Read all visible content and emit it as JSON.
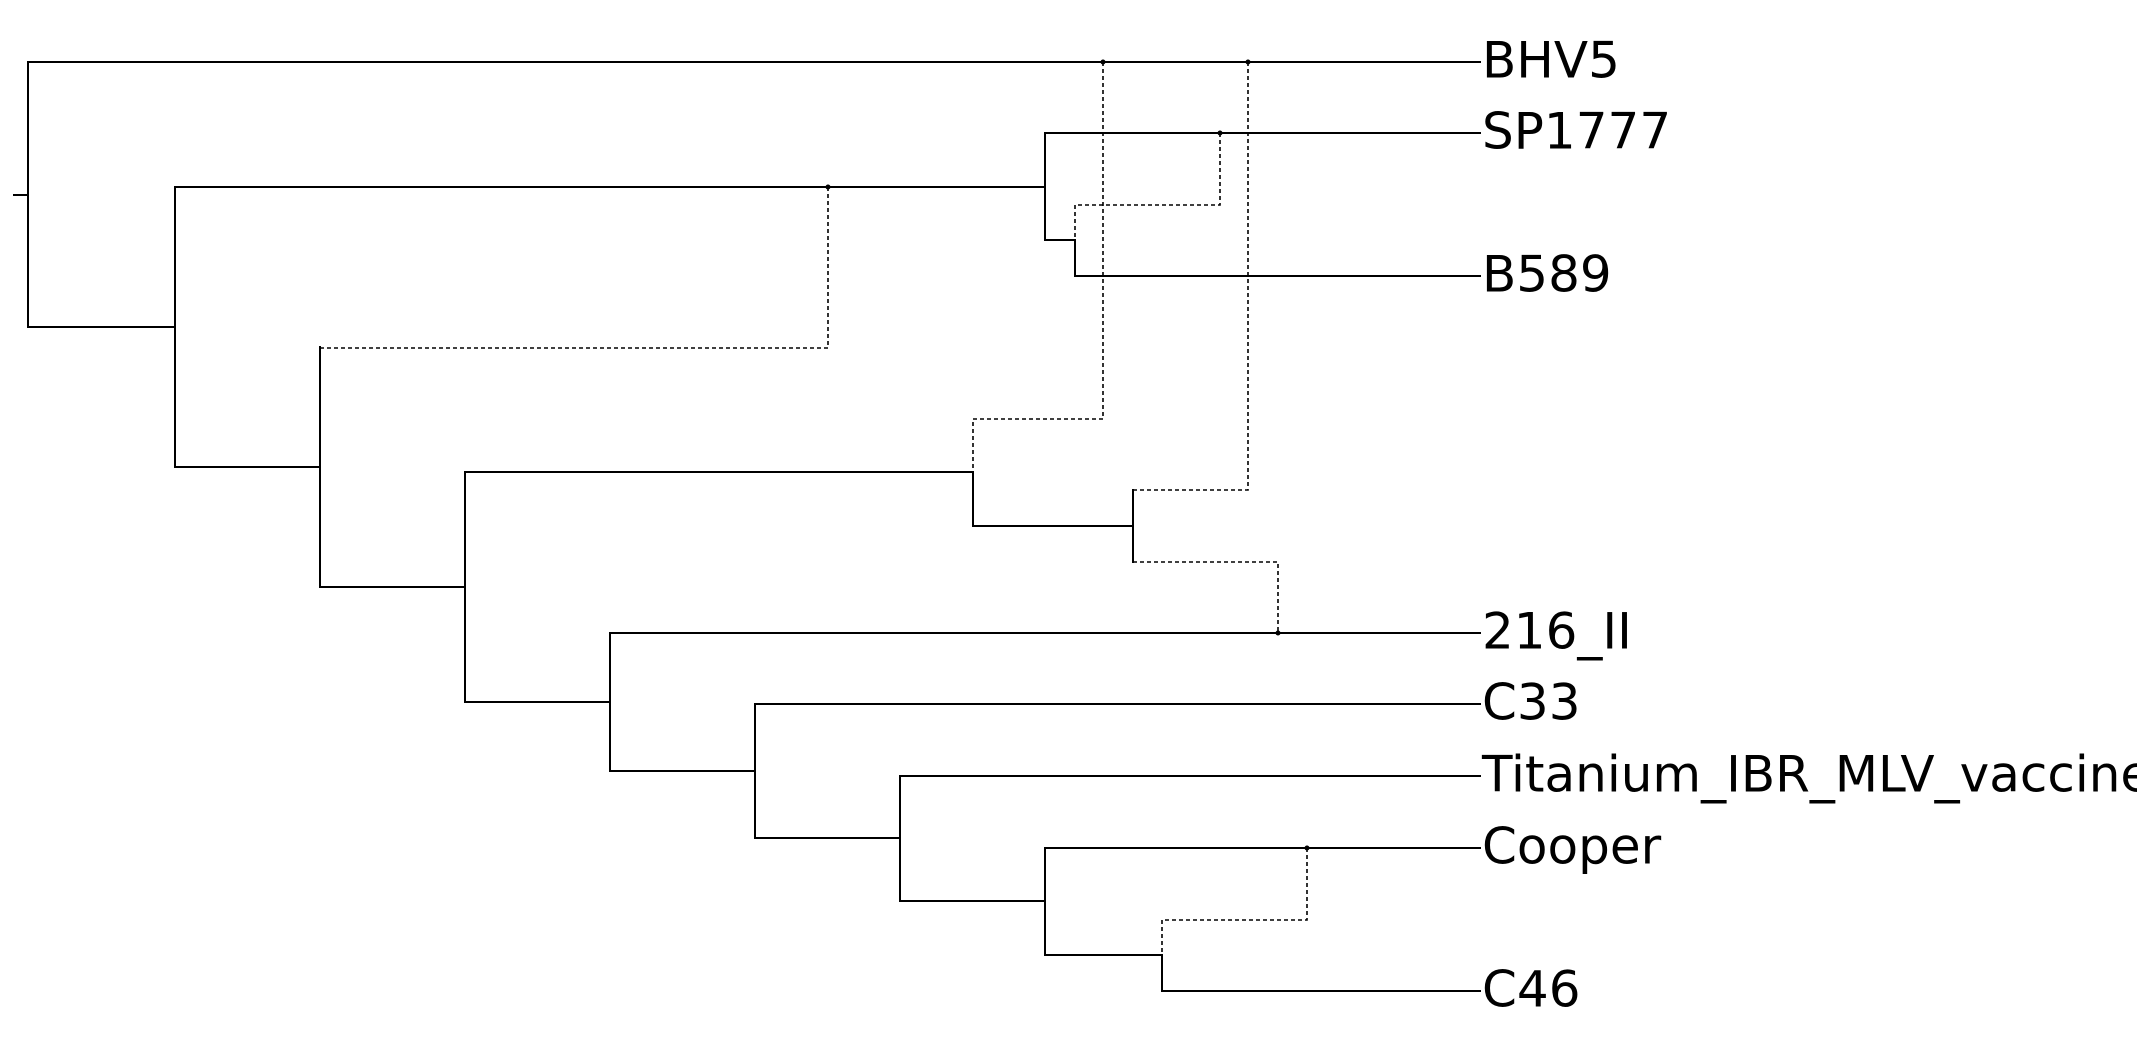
{
  "tree": {
    "colors": {
      "line": "#000000",
      "background": "#ffffff"
    },
    "taxa": [
      {
        "id": "bhv5",
        "label": "BHV5"
      },
      {
        "id": "sp1777",
        "label": "SP1777"
      },
      {
        "id": "b589",
        "label": "B589"
      },
      {
        "id": "t216",
        "label": "216_II"
      },
      {
        "id": "c33",
        "label": "C33"
      },
      {
        "id": "titanium",
        "label": "Titanium_IBR_MLV_vaccine"
      },
      {
        "id": "cooper",
        "label": "Cooper"
      },
      {
        "id": "c46",
        "label": "C46"
      }
    ]
  }
}
